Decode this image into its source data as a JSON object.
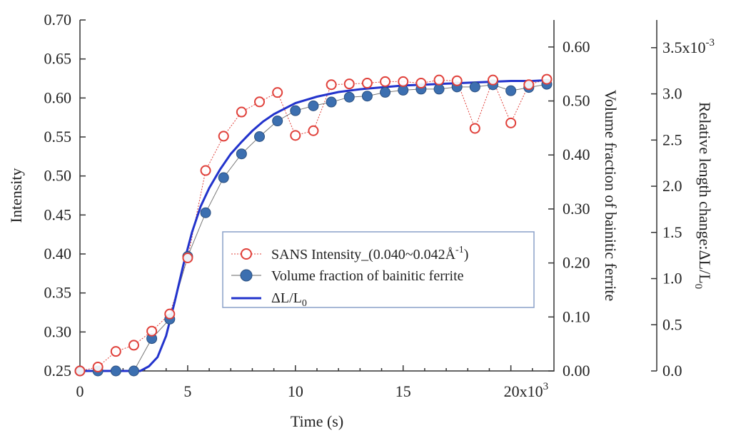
{
  "chart_data": {
    "type": "line",
    "xlabel": "Time (s)",
    "x_ticks": [
      {
        "value": 0,
        "label": "0"
      },
      {
        "value": 5000,
        "label": "5"
      },
      {
        "value": 10000,
        "label": "10"
      },
      {
        "value": 15000,
        "label": "15"
      },
      {
        "value": 20000,
        "label": "20x10",
        "exp": "3"
      }
    ],
    "xlim": [
      0,
      22000
    ],
    "y_left": {
      "label": "Intensity",
      "ylim": [
        0.25,
        0.7
      ],
      "ticks": [
        "0.25",
        "0.30",
        "0.35",
        "0.40",
        "0.45",
        "0.50",
        "0.55",
        "0.60",
        "0.65",
        "0.70"
      ]
    },
    "y_mid": {
      "label": "Volume fraction of bainitic ferrite",
      "ylim": [
        0,
        0.65
      ],
      "ticks": [
        "0.00",
        "0.10",
        "0.20",
        "0.30",
        "0.40",
        "0.50",
        "0.60"
      ]
    },
    "y_right": {
      "label_main": "Relative length change:ΔL/L",
      "label_sub": "0",
      "ylim": [
        0,
        3.8
      ],
      "ticks": [
        {
          "value": 0.0,
          "label": "0.0"
        },
        {
          "value": 0.5,
          "label": "0.5"
        },
        {
          "value": 1.0,
          "label": "1.0"
        },
        {
          "value": 1.5,
          "label": "1.5"
        },
        {
          "value": 2.0,
          "label": "2.0"
        },
        {
          "value": 2.5,
          "label": "2.5"
        },
        {
          "value": 3.0,
          "label": "3.0"
        },
        {
          "value": 3.5,
          "label": "3.5x10",
          "exp": "-3"
        }
      ]
    },
    "series": [
      {
        "name": "SANS Intensity_(0.040~0.042Å",
        "name_sup": "-1",
        "name_suffix": ")",
        "axis": "left",
        "color": "#e0403a",
        "marker": "open-circle",
        "x": [
          0,
          833,
          1667,
          2500,
          3333,
          4167,
          5000,
          5833,
          6667,
          7500,
          8333,
          9167,
          10000,
          10833,
          11667,
          12500,
          13333,
          14167,
          15000,
          15833,
          16667,
          17500,
          18333,
          19167,
          20000,
          20833,
          21667
        ],
        "y": [
          0.25,
          0.255,
          0.275,
          0.283,
          0.301,
          0.323,
          0.395,
          0.507,
          0.551,
          0.582,
          0.595,
          0.607,
          0.552,
          0.558,
          0.617,
          0.618,
          0.619,
          0.621,
          0.621,
          0.619,
          0.623,
          0.622,
          0.561,
          0.623,
          0.568,
          0.617,
          0.624
        ]
      },
      {
        "name": "Volume fraction of bainitic ferrite",
        "axis": "mid",
        "color": "#3c6fb0",
        "marker": "filled-circle",
        "x": [
          0,
          833,
          1667,
          2500,
          3333,
          4167,
          5000,
          5833,
          6667,
          7500,
          8333,
          9167,
          10000,
          10833,
          11667,
          12500,
          13333,
          14167,
          15000,
          15833,
          16667,
          17500,
          18333,
          19167,
          20000,
          20833,
          21667
        ],
        "y": [
          0.0,
          0.0,
          0.0,
          0.0,
          0.06,
          0.096,
          0.212,
          0.293,
          0.358,
          0.402,
          0.434,
          0.463,
          0.482,
          0.491,
          0.498,
          0.507,
          0.509,
          0.516,
          0.52,
          0.522,
          0.522,
          0.526,
          0.526,
          0.53,
          0.519,
          0.525,
          0.531
        ]
      },
      {
        "name": "ΔL/L",
        "name_sub": "0",
        "axis": "right",
        "color": "#2233cc",
        "marker": "none",
        "x": [
          0,
          2000,
          2800,
          3200,
          3600,
          4000,
          4400,
          4800,
          5200,
          5600,
          6000,
          6500,
          7000,
          7500,
          8000,
          8500,
          9000,
          9500,
          10000,
          11000,
          12000,
          13000,
          14000,
          15000,
          16000,
          17000,
          18000,
          19000,
          20000,
          21000,
          21800
        ],
        "y": [
          0,
          0,
          0,
          0.05,
          0.15,
          0.38,
          0.75,
          1.15,
          1.5,
          1.78,
          1.98,
          2.18,
          2.35,
          2.48,
          2.6,
          2.7,
          2.78,
          2.84,
          2.9,
          2.97,
          3.02,
          3.05,
          3.07,
          3.09,
          3.1,
          3.11,
          3.12,
          3.13,
          3.14,
          3.14,
          3.15
        ]
      }
    ]
  }
}
